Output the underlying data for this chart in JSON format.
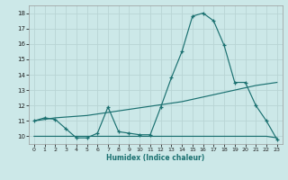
{
  "title": "",
  "xlabel": "Humidex (Indice chaleur)",
  "bg_color": "#cce8e8",
  "grid_color": "#b8d4d4",
  "line_color": "#1a7070",
  "line1_x": [
    0,
    1,
    2,
    3,
    4,
    5,
    6,
    7,
    8,
    9,
    10,
    11,
    12,
    13,
    14,
    15,
    16,
    17,
    18,
    19,
    20,
    21,
    22,
    23
  ],
  "line1_y": [
    11.0,
    11.2,
    11.1,
    10.5,
    9.9,
    9.9,
    10.2,
    11.9,
    10.3,
    10.2,
    10.1,
    10.1,
    11.9,
    13.8,
    15.5,
    17.8,
    18.0,
    17.5,
    15.9,
    13.5,
    13.5,
    12.0,
    11.0,
    9.8
  ],
  "line2_x": [
    0,
    1,
    2,
    3,
    4,
    5,
    6,
    7,
    8,
    9,
    10,
    11,
    12,
    13,
    14,
    15,
    16,
    17,
    18,
    19,
    20,
    21,
    22,
    23
  ],
  "line2_y": [
    11.0,
    11.1,
    11.2,
    11.25,
    11.3,
    11.35,
    11.45,
    11.55,
    11.65,
    11.75,
    11.85,
    11.95,
    12.05,
    12.15,
    12.25,
    12.4,
    12.55,
    12.7,
    12.85,
    13.0,
    13.15,
    13.3,
    13.4,
    13.5
  ],
  "line3_x": [
    0,
    1,
    2,
    3,
    4,
    5,
    6,
    7,
    8,
    9,
    10,
    11,
    12,
    13,
    14,
    15,
    16,
    17,
    18,
    19,
    20,
    21,
    22,
    23
  ],
  "line3_y": [
    10.0,
    10.0,
    10.0,
    10.0,
    10.0,
    10.0,
    10.0,
    10.0,
    10.0,
    10.0,
    10.0,
    10.0,
    10.0,
    10.0,
    10.0,
    10.0,
    10.0,
    10.0,
    10.0,
    10.0,
    10.0,
    10.0,
    10.0,
    9.9
  ],
  "xlim": [
    -0.5,
    23.5
  ],
  "ylim": [
    9.5,
    18.5
  ],
  "yticks": [
    10,
    11,
    12,
    13,
    14,
    15,
    16,
    17,
    18
  ],
  "xticks": [
    0,
    1,
    2,
    3,
    4,
    5,
    6,
    7,
    8,
    9,
    10,
    11,
    12,
    13,
    14,
    15,
    16,
    17,
    18,
    19,
    20,
    21,
    22,
    23
  ]
}
